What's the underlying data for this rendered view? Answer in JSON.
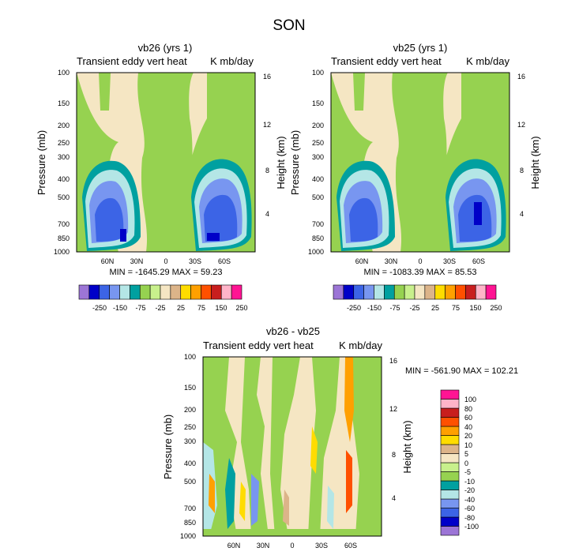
{
  "figure": {
    "title": "SON"
  },
  "colors": {
    "panel_scale": [
      "#9c75d6",
      "#0000c8",
      "#3c64e6",
      "#7896f0",
      "#b4e6e6",
      "#00a0a0",
      "#96d250",
      "#c8f08c",
      "#f5e6c3",
      "#dcb489",
      "#ffdc00",
      "#ffa000",
      "#ff5000",
      "#c81e1e",
      "#ffb4c8",
      "#ff1493"
    ],
    "diff_scale": [
      "#9c75d6",
      "#0000c8",
      "#3c64e6",
      "#7896f0",
      "#b4e6e6",
      "#00a0a0",
      "#96d250",
      "#c8f08c",
      "#f5e6c3",
      "#dcb489",
      "#ffdc00",
      "#ffa000",
      "#ff5000",
      "#c81e1e",
      "#ffb4c8",
      "#ff1493"
    ]
  },
  "chart_data": [
    {
      "type": "heatmap",
      "title": "vb26 (yrs 1)",
      "left_subtitle": "Transient eddy vert heat",
      "right_subtitle": "K mb/day",
      "ylabel": "Pressure (mb)",
      "ylabel_right": "Height (km)",
      "x_ticks": [
        "60N",
        "30N",
        "0",
        "30S",
        "60S"
      ],
      "y_ticks": [
        "100",
        "150",
        "200",
        "250",
        "300",
        "400",
        "500",
        "700",
        "850",
        "1000"
      ],
      "y_ticks_right": [
        "4",
        "8",
        "12",
        "16"
      ],
      "min_max_text": "MIN = -1645.29   MAX = 59.23",
      "colorbar_labels": [
        "-250",
        "-150",
        "-75",
        "-25",
        "25",
        "75",
        "150",
        "250"
      ]
    },
    {
      "type": "heatmap",
      "title": "vb25 (yrs 1)",
      "left_subtitle": "Transient eddy vert heat",
      "right_subtitle": "K mb/day",
      "ylabel": "Pressure (mb)",
      "ylabel_right": "Height (km)",
      "x_ticks": [
        "60N",
        "30N",
        "0",
        "30S",
        "60S"
      ],
      "y_ticks": [
        "100",
        "150",
        "200",
        "250",
        "300",
        "400",
        "500",
        "700",
        "850",
        "1000"
      ],
      "y_ticks_right": [
        "4",
        "8",
        "12",
        "16"
      ],
      "min_max_text": "MIN = -1083.39   MAX = 85.53",
      "colorbar_labels": [
        "-250",
        "-150",
        "-75",
        "-25",
        "25",
        "75",
        "150",
        "250"
      ]
    },
    {
      "type": "heatmap",
      "title": "vb26 - vb25",
      "left_subtitle": "Transient eddy vert heat",
      "right_subtitle": "K mb/day",
      "ylabel": "Pressure (mb)",
      "ylabel_right": "Height (km)",
      "x_ticks": [
        "60N",
        "30N",
        "0",
        "30S",
        "60S"
      ],
      "y_ticks": [
        "100",
        "150",
        "200",
        "250",
        "300",
        "400",
        "500",
        "700",
        "850",
        "1000"
      ],
      "y_ticks_right": [
        "4",
        "8",
        "12",
        "16"
      ],
      "min_max_text": "MIN = -561.90   MAX = 102.21",
      "colorbar_labels": [
        "100",
        "80",
        "60",
        "40",
        "20",
        "10",
        "5",
        "0",
        "-5",
        "-10",
        "-20",
        "-40",
        "-60",
        "-80",
        "-100"
      ]
    }
  ]
}
